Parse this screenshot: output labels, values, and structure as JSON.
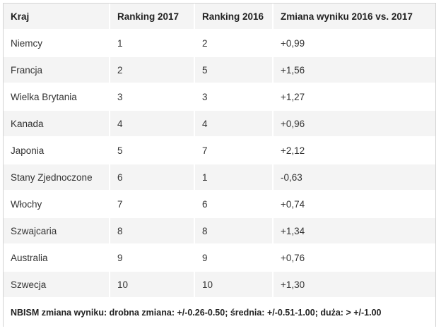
{
  "table": {
    "headers": [
      "Kraj",
      "Ranking 2017",
      "Ranking 2016",
      "Zmiana wyniku 2016 vs. 2017"
    ],
    "rows": [
      [
        "Niemcy",
        "1",
        "2",
        "+0,99"
      ],
      [
        "Francja",
        "2",
        "5",
        "+1,56"
      ],
      [
        "Wielka Brytania",
        "3",
        "3",
        "+1,27"
      ],
      [
        "Kanada",
        "4",
        "4",
        "+0,96"
      ],
      [
        "Japonia",
        "5",
        "7",
        "+2,12"
      ],
      [
        "Stany Zjednoczone",
        "6",
        "1",
        "-0,63"
      ],
      [
        "Włochy",
        "7",
        "6",
        "+0,74"
      ],
      [
        "Szwajcaria",
        "8",
        "8",
        "+1,34"
      ],
      [
        "Australia",
        "9",
        "9",
        "+0,76"
      ],
      [
        "Szwecja",
        "10",
        "10",
        "+1,30"
      ]
    ],
    "footnote": "NBISM zmiana wyniku: drobna zmiana: +/-0.26-0.50; średnia: +/-0.51-1.00; duża: > +/-1.00"
  }
}
